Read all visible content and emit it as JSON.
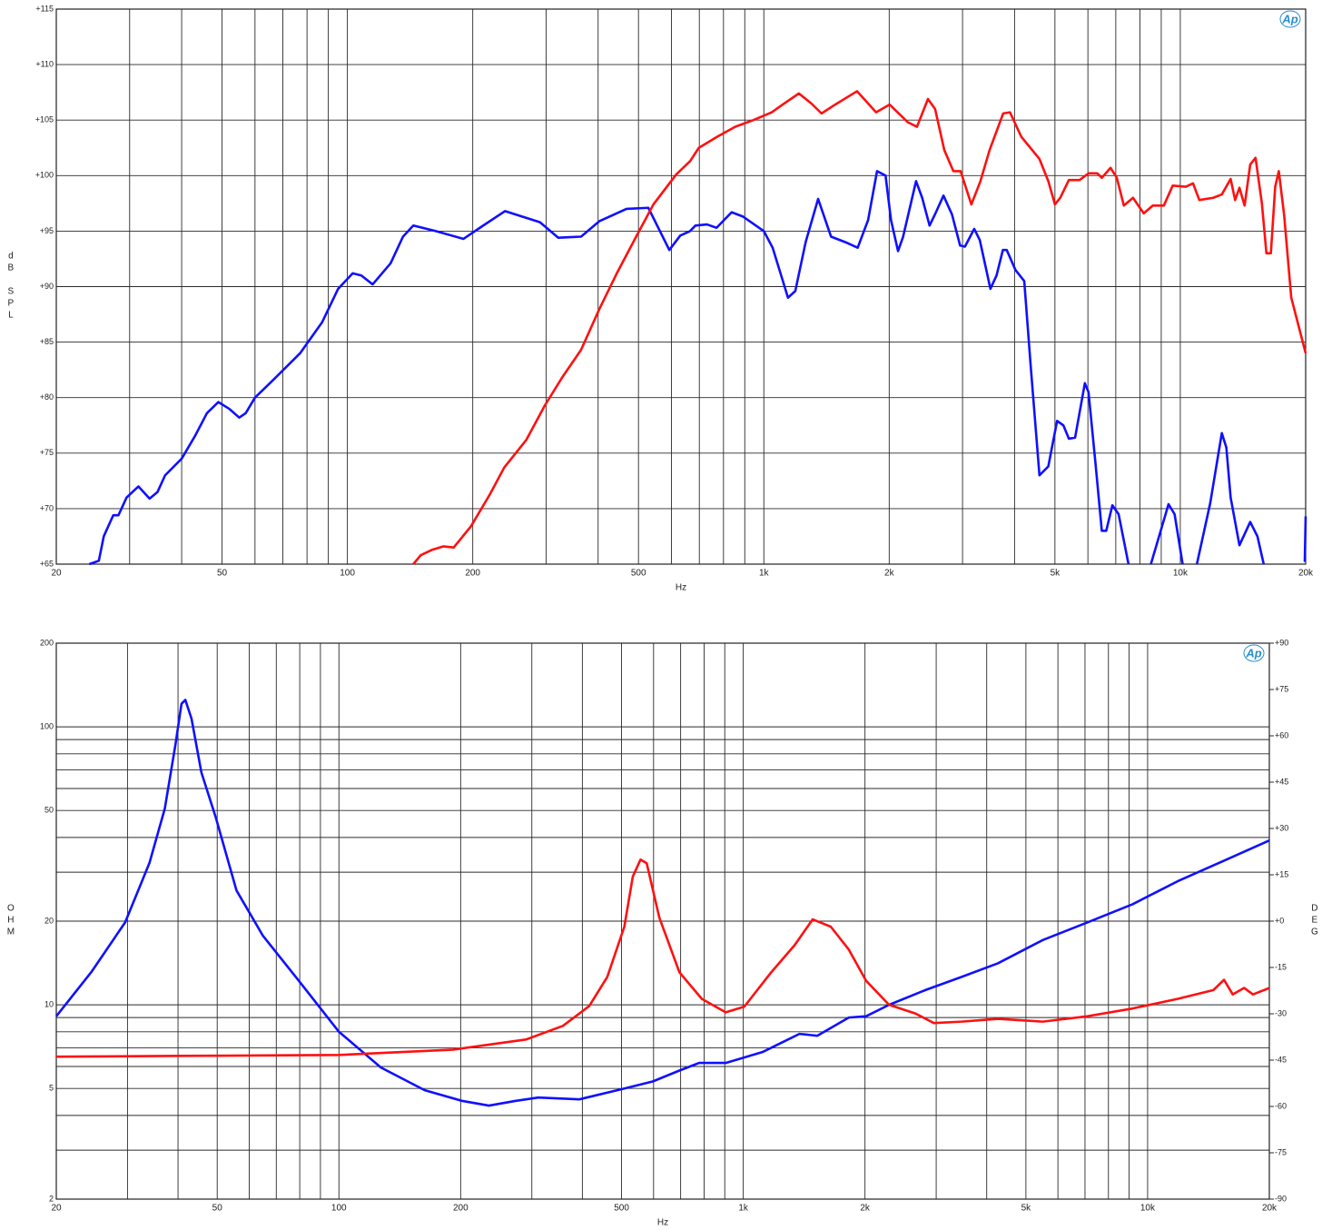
{
  "chart_data": [
    {
      "type": "line",
      "xlabel": "Hz",
      "ylabel": "dB SPL",
      "logo": "Ap",
      "log_x": true,
      "grid": true,
      "xlim": [
        20,
        20000
      ],
      "xticks": [
        20,
        50,
        100,
        200,
        500,
        {
          "value": 1000,
          "label": "1k"
        },
        {
          "value": 2000,
          "label": "2k"
        },
        {
          "value": 5000,
          "label": "5k"
        },
        {
          "value": 10000,
          "label": "10k"
        },
        {
          "value": 20000,
          "label": "20k"
        }
      ],
      "minor_xticks": [
        30,
        40,
        60,
        70,
        80,
        90,
        300,
        400,
        600,
        700,
        800,
        900,
        3000,
        4000,
        6000,
        7000,
        8000,
        9000
      ],
      "ylim": [
        65,
        115
      ],
      "yticks": [
        {
          "value": 65,
          "label": "+65"
        },
        {
          "value": 70,
          "label": "+70"
        },
        {
          "value": 75,
          "label": "+75"
        },
        {
          "value": 80,
          "label": "+80"
        },
        {
          "value": 85,
          "label": "+85"
        },
        {
          "value": 90,
          "label": "+90"
        },
        {
          "value": 95,
          "label": "+95"
        },
        {
          "value": 100,
          "label": "+100"
        },
        {
          "value": 105,
          "label": "+105"
        },
        {
          "value": 110,
          "label": "+110"
        },
        {
          "value": 115,
          "label": "+115"
        }
      ],
      "series": [
        {
          "color": "#1010ff",
          "x": [
            24,
            25.3,
            26,
            27.4,
            28.2,
            29.5,
            31.5,
            33.5,
            35,
            36.5,
            40,
            43,
            46,
            49,
            52,
            55,
            57,
            60,
            66,
            77,
            87,
            95,
            103,
            108,
            115,
            127,
            136,
            144,
            163,
            190,
            210,
            239,
            290,
            321,
            364,
            403,
            468,
            528,
            593,
            630,
            665,
            685,
            730,
            770,
            837,
            892,
            1000,
            1050,
            1143,
            1190,
            1260,
            1350,
            1450,
            1570,
            1680,
            1780,
            1870,
            1960,
            2020,
            2100,
            2160,
            2320,
            2400,
            2500,
            2590,
            2700,
            2830,
            2960,
            3040,
            3200,
            3300,
            3500,
            3620,
            3750,
            3830,
            4020,
            4220,
            4370,
            4590,
            4820,
            5060,
            5240,
            5400,
            5590,
            5900,
            6020,
            6260,
            6480,
            6640,
            6870,
            7110,
            7510,
            8000,
            8500,
            9370,
            9690,
            10130,
            10500,
            10960,
            11800,
            12580,
            12900,
            13210,
            13870,
            14720,
            15320,
            15860,
            17000,
            19900,
            20000
          ],
          "values": [
            65,
            65.3,
            67.5,
            69.4,
            69.4,
            71,
            72,
            70.9,
            71.5,
            73,
            74.5,
            76.5,
            78.6,
            79.6,
            79,
            78.2,
            78.6,
            80,
            81.5,
            84,
            86.8,
            89.8,
            91.2,
            91,
            90.2,
            92.1,
            94.5,
            95.5,
            95,
            94.3,
            95.4,
            96.8,
            95.8,
            94.4,
            94.5,
            95.9,
            97,
            97.1,
            93.3,
            94.6,
            95,
            95.5,
            95.6,
            95.3,
            96.7,
            96.3,
            95,
            93.5,
            89,
            89.6,
            94,
            97.9,
            94.5,
            94,
            93.5,
            96,
            100.4,
            100,
            96,
            93.2,
            94.5,
            99.5,
            98,
            95.5,
            96.7,
            98.2,
            96.5,
            93.7,
            93.6,
            95.2,
            94.2,
            89.8,
            91,
            93.3,
            93.3,
            91.5,
            90.5,
            83,
            73,
            73.8,
            77.9,
            77.5,
            76.3,
            76.4,
            81.3,
            80.5,
            74,
            68,
            68,
            70.3,
            69.5,
            65,
            null,
            65,
            70.4,
            69.5,
            65,
            null,
            65,
            70.5,
            76.8,
            75.5,
            71,
            66.7,
            68.8,
            67.5,
            65,
            null,
            65.2,
            69.3
          ]
        },
        {
          "color": "#ff1010",
          "x": [
            144,
            150,
            160,
            170,
            180,
            198,
            220,
            238,
            269,
            298,
            329,
            364,
            403,
            445,
            492,
            543,
            616,
            665,
            698,
            773,
            854,
            944,
            1044,
            1120,
            1214,
            1300,
            1376,
            1484,
            1674,
            1860,
            2004,
            2218,
            2332,
            2478,
            2578,
            2712,
            2852,
            2968,
            3150,
            3312,
            3484,
            3756,
            3900,
            4152,
            4590,
            4820,
            5000,
            5150,
            5400,
            5730,
            6020,
            6320,
            6480,
            6800,
            7040,
            7320,
            7700,
            8170,
            8590,
            9130,
            9590,
            10310,
            10730,
            11110,
            11990,
            12580,
            13210,
            13540,
            13870,
            14270,
            14720,
            15160,
            15700,
            16100,
            16500,
            16900,
            17240,
            17750,
            18470,
            20000
          ],
          "values": [
            65,
            65.8,
            66.3,
            66.6,
            66.5,
            68.4,
            71.3,
            73.7,
            76.2,
            79.3,
            81.9,
            84.3,
            88,
            91.3,
            94.4,
            97.4,
            100.1,
            101.3,
            102.5,
            103.5,
            104.4,
            105,
            105.7,
            106.5,
            107.4,
            106.5,
            105.6,
            106.4,
            107.6,
            105.7,
            106.4,
            104.8,
            104.4,
            106.9,
            106,
            102.3,
            100.4,
            100.4,
            97.4,
            99.5,
            102.3,
            105.6,
            105.7,
            103.5,
            101.5,
            99.5,
            97.4,
            98,
            99.6,
            99.6,
            100.2,
            100.2,
            99.8,
            100.7,
            99.8,
            97.3,
            98,
            96.6,
            97.3,
            97.3,
            99.1,
            99,
            99.3,
            97.8,
            98,
            98.3,
            99.7,
            97.8,
            98.9,
            97.3,
            101,
            101.6,
            97.5,
            93,
            93,
            99,
            100.4,
            96.5,
            89,
            84
          ]
        }
      ]
    },
    {
      "type": "line",
      "xlabel": "Hz",
      "ylabel": "OHM",
      "y2label": "DEG",
      "logo": "Ap",
      "log_x": true,
      "log_y": true,
      "grid": true,
      "xlim": [
        20,
        20000
      ],
      "xticks": [
        20,
        50,
        100,
        200,
        500,
        {
          "value": 1000,
          "label": "1k"
        },
        {
          "value": 2000,
          "label": "2k"
        },
        {
          "value": 5000,
          "label": "5k"
        },
        {
          "value": 10000,
          "label": "10k"
        },
        {
          "value": 20000,
          "label": "20k"
        }
      ],
      "minor_xticks": [
        30,
        40,
        60,
        70,
        80,
        90,
        300,
        400,
        600,
        700,
        800,
        900,
        3000,
        4000,
        6000,
        7000,
        8000,
        9000
      ],
      "ylim": [
        2,
        200
      ],
      "yticks": [
        2,
        5,
        10,
        20,
        50,
        100,
        200
      ],
      "minor_yticks": [
        3,
        4,
        6,
        7,
        8,
        9,
        30,
        40,
        60,
        70,
        80,
        90
      ],
      "y2lim": [
        -90,
        90
      ],
      "y2ticks": [
        {
          "value": 90,
          "label": "+90"
        },
        {
          "value": 75,
          "label": "+75"
        },
        {
          "value": 60,
          "label": "+60"
        },
        {
          "value": 45,
          "label": "+45"
        },
        {
          "value": 30,
          "label": "+30"
        },
        {
          "value": 15,
          "label": "+15"
        },
        {
          "value": 0,
          "label": "+0"
        },
        -15,
        -30,
        -45,
        -60,
        -75,
        -90
      ],
      "series": [
        {
          "color": "#1010ff",
          "x": [
            20,
            24.4,
            29.6,
            34,
            37.1,
            39.4,
            40.8,
            41.7,
            43.2,
            45.7,
            49.6,
            55.8,
            64.9,
            79.6,
            100,
            127,
            163,
            202,
            235,
            273,
            311,
            393,
            508,
            597,
            695,
            778,
            905,
            1115,
            1377,
            1525,
            1824,
            2013,
            2294,
            2821,
            3468,
            4263,
            5505,
            7107,
            9176,
            11847,
            15295,
            20000
          ],
          "values": [
            9.1,
            13.1,
            19.8,
            32.4,
            50.8,
            86,
            121,
            125,
            107,
            68.5,
            47.2,
            25.8,
            17.7,
            12.2,
            8.0,
            5.95,
            4.93,
            4.51,
            4.34,
            4.51,
            4.64,
            4.57,
            5.0,
            5.3,
            5.8,
            6.18,
            6.18,
            6.76,
            7.86,
            7.74,
            9.0,
            9.1,
            10.0,
            11.3,
            12.6,
            14.1,
            17.1,
            19.8,
            23.0,
            27.8,
            32.8,
            39.0
          ]
        },
        {
          "color": "#ff1010",
          "x": [
            20,
            40.8,
            100,
            192,
            290,
            358,
            416,
            461,
            508,
            533,
            557,
            577,
            620,
            695,
            790,
            905,
            1006,
            1173,
            1340,
            1485,
            1646,
            1824,
            2013,
            2294,
            2668,
            2960,
            3468,
            4263,
            5505,
            7107,
            9176,
            11847,
            14550,
            15450,
            16240,
            17330,
            18220,
            20000
          ],
          "values": [
            6.51,
            6.55,
            6.6,
            6.9,
            7.5,
            8.4,
            9.9,
            12.6,
            19.1,
            28.9,
            33.3,
            32.3,
            20.6,
            13.1,
            10.5,
            9.4,
            9.85,
            13.1,
            16.4,
            20.3,
            19.1,
            15.8,
            12.2,
            10.0,
            9.3,
            8.6,
            8.7,
            8.9,
            8.7,
            9.1,
            9.7,
            10.5,
            11.3,
            12.3,
            10.9,
            11.5,
            10.9,
            11.5
          ]
        }
      ]
    }
  ]
}
